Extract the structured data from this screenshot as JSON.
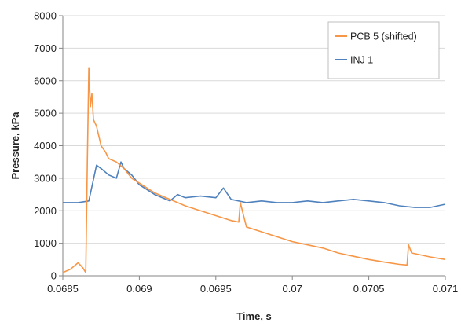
{
  "chart_data": {
    "type": "line",
    "title": "",
    "xlabel": "Time, s",
    "ylabel": "Pressure, kPa",
    "xlim": [
      0.0685,
      0.071
    ],
    "ylim": [
      0,
      8000
    ],
    "x_ticks": [
      0.0685,
      0.069,
      0.0695,
      0.07,
      0.0705,
      0.071
    ],
    "x_tick_labels": [
      "0.0685",
      "0.069",
      "0.0695",
      "0.07",
      "0.0705",
      "0.071"
    ],
    "y_ticks": [
      0,
      1000,
      2000,
      3000,
      4000,
      5000,
      6000,
      7000,
      8000
    ],
    "y_tick_labels": [
      "0",
      "1000",
      "2000",
      "3000",
      "4000",
      "5000",
      "6000",
      "7000",
      "8000"
    ],
    "grid": "horizontal",
    "legend_position": "top-right",
    "series": [
      {
        "name": "PCB 5 (shifted)",
        "color": "#F79646",
        "x": [
          0.0685,
          0.06855,
          0.0686,
          0.06863,
          0.06865,
          0.06866,
          0.06867,
          0.06868,
          0.06869,
          0.0687,
          0.06872,
          0.06875,
          0.06878,
          0.0688,
          0.06885,
          0.0689,
          0.06895,
          0.069,
          0.06905,
          0.0691,
          0.0692,
          0.0693,
          0.0694,
          0.0695,
          0.0696,
          0.06965,
          0.06966,
          0.0697,
          0.0698,
          0.0699,
          0.07,
          0.0701,
          0.0702,
          0.0703,
          0.0704,
          0.0705,
          0.0706,
          0.0707,
          0.07075,
          0.07076,
          0.07078,
          0.0709,
          0.071
        ],
        "values": [
          100,
          200,
          400,
          250,
          100,
          3500,
          6400,
          5200,
          5600,
          4800,
          4600,
          4000,
          3800,
          3600,
          3500,
          3300,
          3000,
          2850,
          2700,
          2550,
          2350,
          2150,
          2000,
          1850,
          1700,
          1650,
          2250,
          1500,
          1350,
          1200,
          1050,
          950,
          850,
          700,
          600,
          500,
          420,
          350,
          330,
          950,
          700,
          580,
          500
        ]
      },
      {
        "name": "INJ 1",
        "color": "#4F81BD",
        "x": [
          0.0685,
          0.0686,
          0.06867,
          0.06872,
          0.06875,
          0.0688,
          0.06885,
          0.06888,
          0.0689,
          0.06895,
          0.069,
          0.0691,
          0.0692,
          0.06925,
          0.0693,
          0.0694,
          0.0695,
          0.06955,
          0.0696,
          0.0697,
          0.0698,
          0.0699,
          0.07,
          0.0701,
          0.0702,
          0.0703,
          0.0704,
          0.0705,
          0.0706,
          0.0707,
          0.0708,
          0.0709,
          0.071
        ],
        "values": [
          2250,
          2250,
          2300,
          3400,
          3300,
          3100,
          3000,
          3500,
          3300,
          3100,
          2800,
          2500,
          2300,
          2500,
          2400,
          2450,
          2400,
          2700,
          2350,
          2250,
          2300,
          2250,
          2250,
          2300,
          2250,
          2300,
          2350,
          2300,
          2250,
          2150,
          2100,
          2100,
          2200
        ]
      }
    ]
  }
}
